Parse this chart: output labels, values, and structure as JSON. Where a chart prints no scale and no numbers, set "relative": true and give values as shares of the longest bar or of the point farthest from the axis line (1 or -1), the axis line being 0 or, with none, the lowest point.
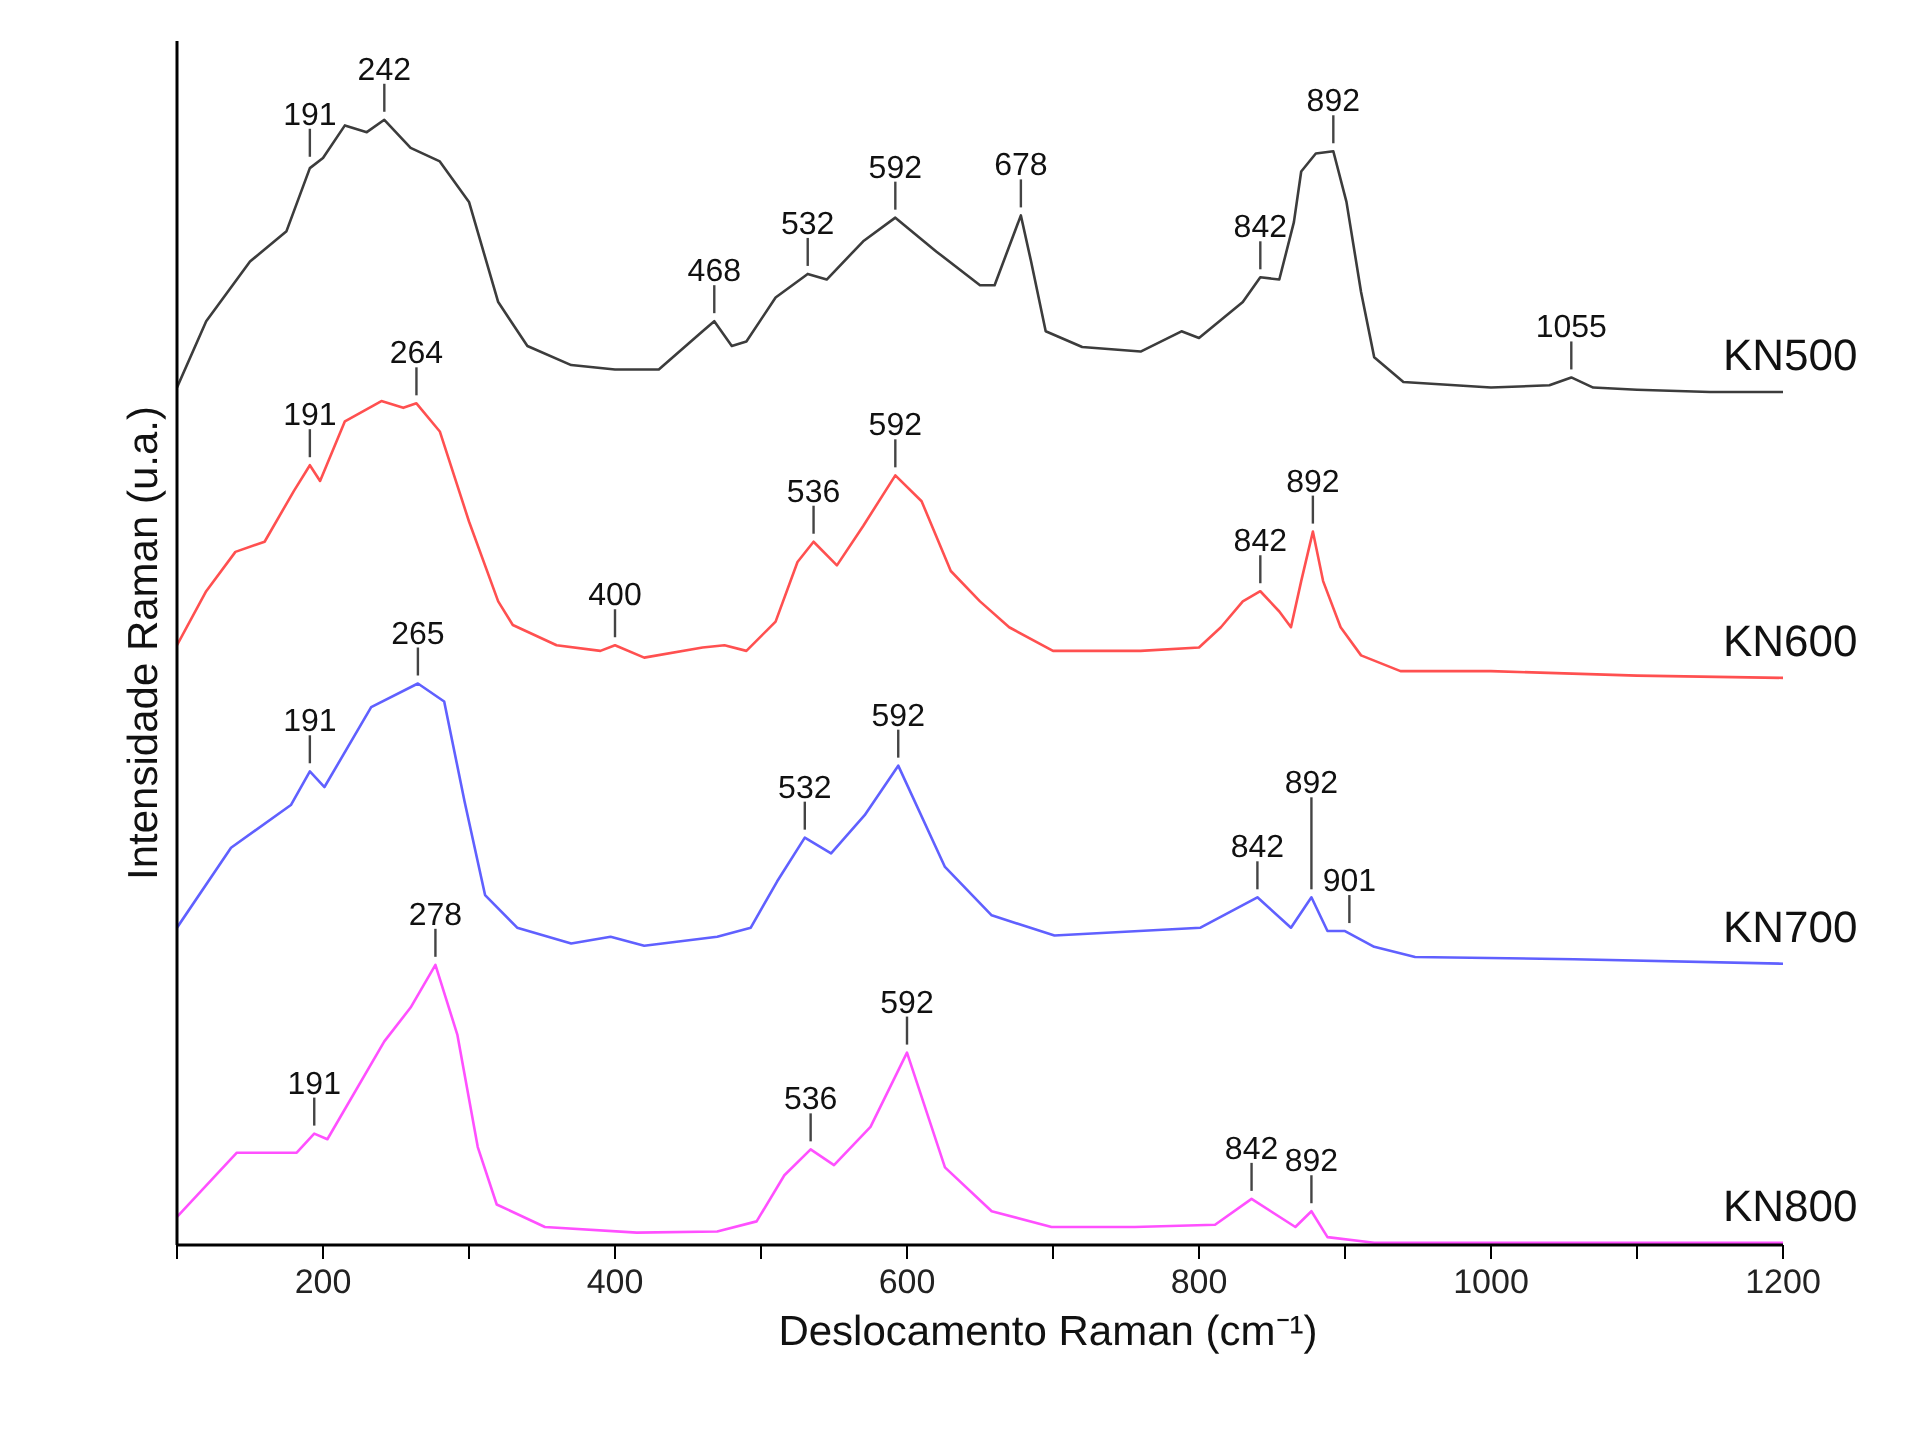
{
  "chart_data": {
    "type": "line",
    "relative": true,
    "xlabel": "Deslocamento Raman (cm⁻¹)",
    "ylabel": "Intensidade Raman (u.a.)",
    "xlim": [
      100,
      1200
    ],
    "xticks": [
      {
        "value": 100,
        "label": null
      },
      200,
      {
        "value": 300,
        "label": null
      },
      400,
      {
        "value": 500,
        "label": null
      },
      600,
      {
        "value": 700,
        "label": null
      },
      800,
      {
        "value": 900,
        "label": null
      },
      1000,
      {
        "value": 1100,
        "label": null
      },
      1200
    ],
    "series": [
      {
        "name": "KN500",
        "color": "#3c3c3c",
        "x": [
          100,
          120,
          150,
          175,
          191,
          200,
          215,
          230,
          242,
          260,
          280,
          300,
          320,
          340,
          370,
          400,
          430,
          460,
          468,
          480,
          490,
          510,
          532,
          545,
          570,
          592,
          620,
          650,
          660,
          678,
          685,
          695,
          720,
          760,
          788,
          800,
          830,
          842,
          855,
          865,
          870,
          880,
          892,
          901,
          911,
          920,
          940,
          1000,
          1040,
          1055,
          1070,
          1100,
          1150,
          1200
        ],
        "values": [
          0.762,
          0.821,
          0.874,
          0.901,
          0.957,
          0.966,
          0.995,
          0.989,
          1.0,
          0.975,
          0.963,
          0.927,
          0.838,
          0.799,
          0.782,
          0.778,
          0.778,
          0.812,
          0.821,
          0.799,
          0.803,
          0.842,
          0.863,
          0.858,
          0.892,
          0.913,
          0.883,
          0.853,
          0.853,
          0.915,
          0.874,
          0.812,
          0.798,
          0.794,
          0.812,
          0.806,
          0.838,
          0.86,
          0.858,
          0.909,
          0.954,
          0.97,
          0.972,
          0.927,
          0.847,
          0.789,
          0.767,
          0.762,
          0.764,
          0.771,
          0.762,
          0.76,
          0.758,
          0.758
        ]
      },
      {
        "name": "KN600",
        "color": "#ff5050",
        "x": [
          100,
          120,
          140,
          160,
          180,
          191,
          198,
          215,
          240,
          255,
          264,
          280,
          300,
          320,
          330,
          360,
          390,
          400,
          420,
          460,
          475,
          490,
          510,
          525,
          536,
          552,
          570,
          592,
          610,
          630,
          650,
          670,
          700,
          760,
          800,
          815,
          830,
          842,
          855,
          863,
          870,
          878,
          885,
          897,
          911,
          938,
          1000,
          1100,
          1200
        ],
        "values": [
          0.533,
          0.581,
          0.616,
          0.625,
          0.67,
          0.693,
          0.679,
          0.732,
          0.75,
          0.744,
          0.748,
          0.723,
          0.643,
          0.572,
          0.551,
          0.533,
          0.528,
          0.533,
          0.522,
          0.531,
          0.533,
          0.528,
          0.554,
          0.607,
          0.625,
          0.604,
          0.639,
          0.684,
          0.661,
          0.599,
          0.572,
          0.549,
          0.528,
          0.528,
          0.531,
          0.549,
          0.572,
          0.581,
          0.563,
          0.549,
          0.59,
          0.634,
          0.59,
          0.549,
          0.524,
          0.51,
          0.51,
          0.506,
          0.504
        ]
      },
      {
        "name": "KN700",
        "color": "#6060ff",
        "x": [
          100,
          137,
          178,
          191,
          201,
          233,
          265,
          283,
          297,
          311,
          333,
          370,
          397,
          420,
          470,
          493,
          511,
          530,
          548,
          571,
          594,
          626,
          658,
          701,
          801,
          840,
          863,
          877,
          888,
          900,
          920,
          948,
          1057,
          1200
        ],
        "values": [
          0.282,
          0.353,
          0.391,
          0.421,
          0.407,
          0.478,
          0.499,
          0.483,
          0.394,
          0.311,
          0.282,
          0.268,
          0.274,
          0.266,
          0.274,
          0.282,
          0.323,
          0.362,
          0.348,
          0.382,
          0.426,
          0.336,
          0.293,
          0.275,
          0.282,
          0.309,
          0.282,
          0.309,
          0.279,
          0.279,
          0.265,
          0.256,
          0.254,
          0.25
        ]
      },
      {
        "name": "KN800",
        "color": "#ff50ff",
        "x": [
          100,
          141,
          182,
          194,
          203,
          242,
          260,
          277,
          292,
          306,
          319,
          352,
          415,
          470,
          497,
          516,
          534,
          550,
          575,
          600,
          626,
          658,
          699,
          756,
          811,
          836,
          866,
          877,
          888,
          920,
          1200
        ],
        "values": [
          0.025,
          0.082,
          0.082,
          0.099,
          0.094,
          0.181,
          0.211,
          0.249,
          0.187,
          0.087,
          0.036,
          0.016,
          0.011,
          0.012,
          0.021,
          0.062,
          0.085,
          0.071,
          0.105,
          0.171,
          0.069,
          0.03,
          0.016,
          0.016,
          0.018,
          0.041,
          0.016,
          0.03,
          0.007,
          0.002,
          0.002
        ]
      }
    ],
    "annotations": [
      {
        "text": "191",
        "x": 191,
        "y": 0.96
      },
      {
        "text": "242",
        "x": 242,
        "y": 1.0
      },
      {
        "text": "468",
        "x": 468,
        "y": 0.821
      },
      {
        "text": "532",
        "x": 532,
        "y": 0.863
      },
      {
        "text": "592",
        "x": 592,
        "y": 0.913
      },
      {
        "text": "678",
        "x": 678,
        "y": 0.915
      },
      {
        "text": "842",
        "x": 842,
        "y": 0.86
      },
      {
        "text": "892",
        "x": 892,
        "y": 0.972
      },
      {
        "text": "1055",
        "x": 1055,
        "y": 0.771
      },
      {
        "text": "191",
        "x": 191,
        "y": 0.693
      },
      {
        "text": "264",
        "x": 264,
        "y": 0.748
      },
      {
        "text": "400",
        "x": 400,
        "y": 0.533
      },
      {
        "text": "536",
        "x": 536,
        "y": 0.625
      },
      {
        "text": "592",
        "x": 592,
        "y": 0.684
      },
      {
        "text": "842",
        "x": 842,
        "y": 0.581
      },
      {
        "text": "892",
        "x": 878,
        "y": 0.634
      },
      {
        "text": "191",
        "x": 191,
        "y": 0.421
      },
      {
        "text": "265",
        "x": 265,
        "y": 0.499
      },
      {
        "text": "532",
        "x": 530,
        "y": 0.362
      },
      {
        "text": "592",
        "x": 594,
        "y": 0.426
      },
      {
        "text": "842",
        "x": 840,
        "y": 0.309
      },
      {
        "text": "892",
        "x": 877,
        "y": 0.309
      },
      {
        "text": "901",
        "x": 903,
        "y": 0.279
      },
      {
        "text": "191",
        "x": 194,
        "y": 0.099
      },
      {
        "text": "278",
        "x": 277,
        "y": 0.249
      },
      {
        "text": "536",
        "x": 534,
        "y": 0.085
      },
      {
        "text": "592",
        "x": 600,
        "y": 0.171
      },
      {
        "text": "842",
        "x": 836,
        "y": 0.041
      },
      {
        "text": "892",
        "x": 877,
        "y": 0.03
      }
    ]
  }
}
